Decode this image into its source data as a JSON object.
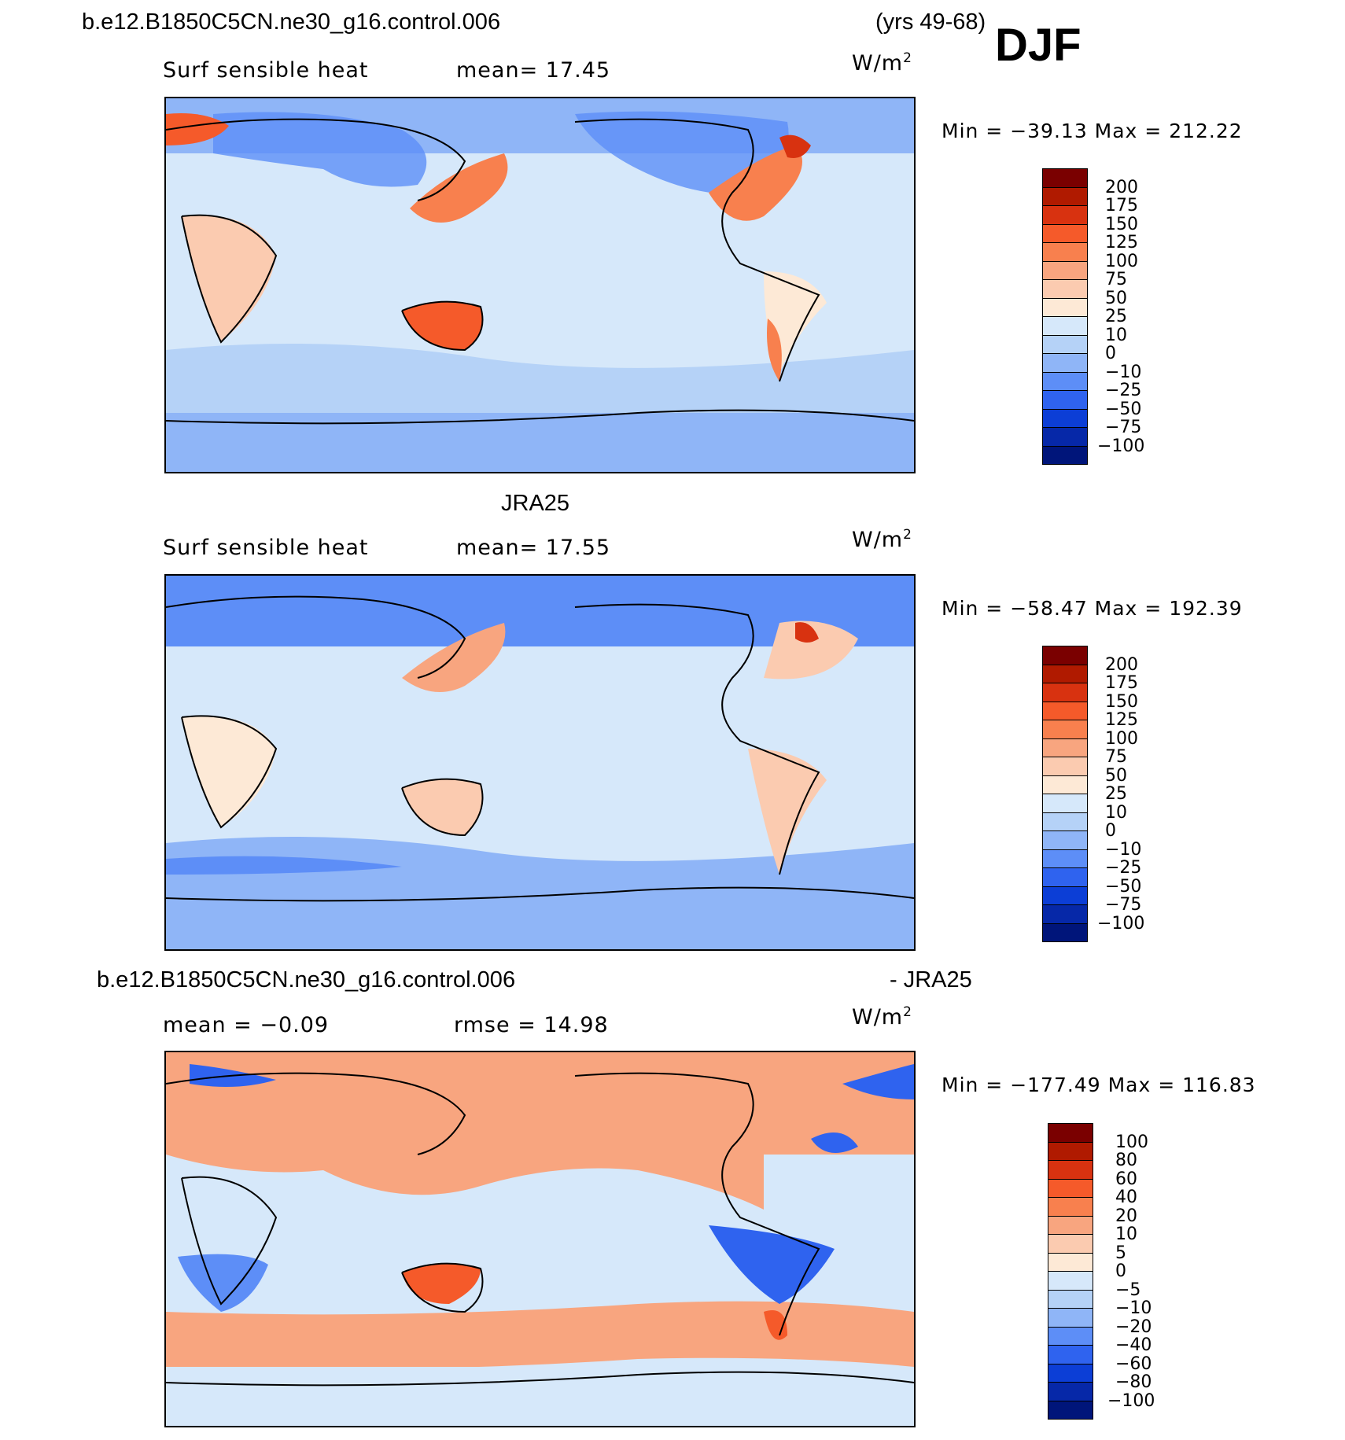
{
  "header": {
    "case_name": "b.e12.B1850C5CN.ne30_g16.control.006",
    "years": "(yrs 49-68)",
    "season": "DJF"
  },
  "panels": [
    {
      "id": "model",
      "title": "",
      "variable": "Surf sensible heat",
      "stat1": "mean=  17.45",
      "stat2": "",
      "units": "W/m",
      "units_sup": "2",
      "minmax": "Min = −39.13 Max = 212.22",
      "levels": [
        "200",
        "175",
        "150",
        "125",
        "100",
        "75",
        "50",
        "25",
        "10",
        "0",
        "−10",
        "−25",
        "−50",
        "−75",
        "−100"
      ]
    },
    {
      "id": "obs",
      "title": "JRA25",
      "variable": "Surf sensible heat",
      "stat1": "mean=  17.55",
      "stat2": "",
      "units": "W/m",
      "units_sup": "2",
      "minmax": "Min = −58.47 Max = 192.39",
      "levels": [
        "200",
        "175",
        "150",
        "125",
        "100",
        "75",
        "50",
        "25",
        "10",
        "0",
        "−10",
        "−25",
        "−50",
        "−75",
        "−100"
      ]
    },
    {
      "id": "diff",
      "title_left": "b.e12.B1850C5CN.ne30_g16.control.006",
      "title_right": "- JRA25",
      "variable": "mean =  −0.09",
      "stat1": "rmse =  14.98",
      "units": "W/m",
      "units_sup": "2",
      "minmax": "Min = −177.49 Max = 116.83",
      "levels": [
        "100",
        "80",
        "60",
        "40",
        "20",
        "10",
        "5",
        "0",
        "−5",
        "−10",
        "−20",
        "−40",
        "−60",
        "−80",
        "−100"
      ]
    }
  ],
  "colors": {
    "scale": [
      "#7a0000",
      "#b01a00",
      "#d83210",
      "#f55a2a",
      "#f8804e",
      "#f8a57f",
      "#fbcbb0",
      "#fde9d6",
      "#d6e8fa",
      "#b5d2f7",
      "#8fb5f7",
      "#5d8ef7",
      "#2f63ef",
      "#0c3ed6",
      "#0628a8",
      "#00157a"
    ],
    "ocean_base_top": "#d6e8fa",
    "diff_base": "#fbcbb0"
  }
}
